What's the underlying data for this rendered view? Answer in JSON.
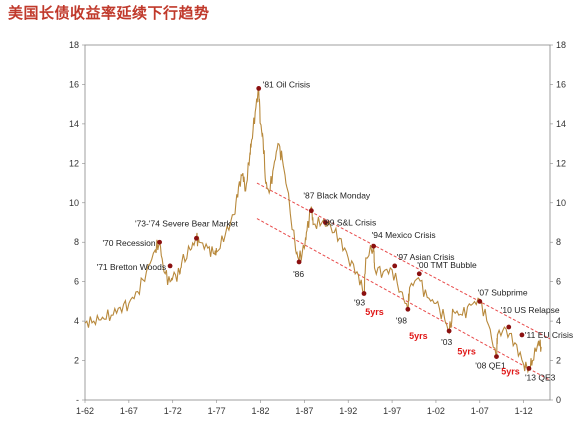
{
  "title": "美国长债收益率延续下行趋势",
  "chart_data": {
    "type": "line",
    "title": "美国长债收益率延续下行趋势",
    "ylim": [
      0,
      18
    ],
    "yticks_left": [
      "18",
      "16",
      "14",
      "12",
      "10",
      "8",
      "6",
      "4",
      "2",
      "-"
    ],
    "yticks_right": [
      "18",
      "16",
      "14",
      "12",
      "10",
      "8",
      "6",
      "4",
      "2",
      "0"
    ],
    "xlim": [
      1962,
      2015
    ],
    "xticks": [
      {
        "label": "1-62",
        "x": 1962
      },
      {
        "label": "1-67",
        "x": 1967
      },
      {
        "label": "1-72",
        "x": 1972
      },
      {
        "label": "1-77",
        "x": 1977
      },
      {
        "label": "1-82",
        "x": 1982
      },
      {
        "label": "1-87",
        "x": 1987
      },
      {
        "label": "1-92",
        "x": 1992
      },
      {
        "label": "1-97",
        "x": 1997
      },
      {
        "label": "1-02",
        "x": 2002
      },
      {
        "label": "1-07",
        "x": 2007
      },
      {
        "label": "1-12",
        "x": 2012
      }
    ],
    "series_color": "#b8893c",
    "series": [
      {
        "x": [
          1962,
          1963,
          1964,
          1965,
          1966,
          1967,
          1968,
          1969,
          1970,
          1970.5,
          1971,
          1971.7,
          1972,
          1972.8,
          1973,
          1974,
          1974.7,
          1975,
          1976,
          1976.8,
          1977,
          1978,
          1979,
          1979.5,
          1980,
          1980.3,
          1980.8,
          1981,
          1981.4,
          1981.8,
          1982,
          1982.3,
          1982.6,
          1983,
          1983.5,
          1984,
          1984.5,
          1985,
          1986,
          1986.4,
          1987,
          1987.3,
          1987.8,
          1988,
          1989,
          1990,
          1991,
          1992,
          1993,
          1993.8,
          1994,
          1994.9,
          1995,
          1996,
          1997,
          1998,
          1998.8,
          1999,
          2000,
          2001,
          2002,
          2003,
          2003.5,
          2004,
          2005,
          2006,
          2007,
          2008,
          2008.9,
          2009,
          2010,
          2011,
          2012,
          2012.6,
          2013,
          2013.7,
          2014
        ],
        "y": [
          3.9,
          4.0,
          4.2,
          4.3,
          4.7,
          4.9,
          5.5,
          6.5,
          7.6,
          8.0,
          6.5,
          6.0,
          6.2,
          6.4,
          6.9,
          7.6,
          8.2,
          8.0,
          7.7,
          7.4,
          7.5,
          8.4,
          9.4,
          10.8,
          11.5,
          10.6,
          12.5,
          13.2,
          14.6,
          15.8,
          14.0,
          13.2,
          11.0,
          10.5,
          11.8,
          13.0,
          12.2,
          10.8,
          7.6,
          7.1,
          7.7,
          8.6,
          9.8,
          8.9,
          9.0,
          8.8,
          8.2,
          7.2,
          6.5,
          5.4,
          7.2,
          7.8,
          6.7,
          6.5,
          6.6,
          5.5,
          4.6,
          5.7,
          6.2,
          5.2,
          4.9,
          4.1,
          3.4,
          4.5,
          4.3,
          4.8,
          5.1,
          3.8,
          2.1,
          3.3,
          3.6,
          2.9,
          1.8,
          1.6,
          2.0,
          3.0,
          2.7
        ]
      }
    ],
    "markers": [
      {
        "label": "'81 Oil Crisis",
        "x": 1981.8,
        "y": 15.8
      },
      {
        "label": "'73-'74 Severe Bear Market",
        "x": 1974.7,
        "y": 8.2
      },
      {
        "label": "'70 Recession",
        "x": 1970.5,
        "y": 8.0
      },
      {
        "label": "'71 Bretton Woods",
        "x": 1971.7,
        "y": 6.8
      },
      {
        "label": "'87 Black Monday",
        "x": 1987.8,
        "y": 9.6
      },
      {
        "label": "'89 S&L Crisis",
        "x": 1989.4,
        "y": 9.0
      },
      {
        "label": "'86",
        "x": 1986.4,
        "y": 7.0
      },
      {
        "label": "'94 Mexico Crisis",
        "x": 1994.9,
        "y": 7.8
      },
      {
        "label": "'93",
        "x": 1993.8,
        "y": 5.4
      },
      {
        "label": "'97 Asian Crisis",
        "x": 1997.3,
        "y": 6.8
      },
      {
        "label": "'00 TMT Bubble",
        "x": 2000.1,
        "y": 6.4
      },
      {
        "label": "'98",
        "x": 1998.8,
        "y": 4.6
      },
      {
        "label": "'03",
        "x": 2003.5,
        "y": 3.5
      },
      {
        "label": "'07 Subprime",
        "x": 2007.0,
        "y": 5.0
      },
      {
        "label": "'10 US Relapse",
        "x": 2010.3,
        "y": 3.7
      },
      {
        "label": "'11 EU Crisis",
        "x": 2011.8,
        "y": 3.3
      },
      {
        "label": "'08 QE1",
        "x": 2008.9,
        "y": 2.2
      },
      {
        "label": "'13 QE3",
        "x": 2012.6,
        "y": 1.6
      }
    ],
    "trend_lines": [
      {
        "from": {
          "x": 1981.6,
          "y": 11.0
        },
        "to": {
          "x": 2015,
          "y": 3.1
        }
      },
      {
        "from": {
          "x": 1981.6,
          "y": 9.2
        },
        "to": {
          "x": 2015,
          "y": 1.0
        }
      }
    ],
    "period_labels": [
      {
        "label": "5yrs",
        "x": 1995.0,
        "y": 4.3
      },
      {
        "label": "5yrs",
        "x": 2000.0,
        "y": 3.1
      },
      {
        "label": "5yrs",
        "x": 2005.5,
        "y": 2.3
      },
      {
        "label": "5yrs",
        "x": 2010.5,
        "y": 1.3
      }
    ]
  }
}
